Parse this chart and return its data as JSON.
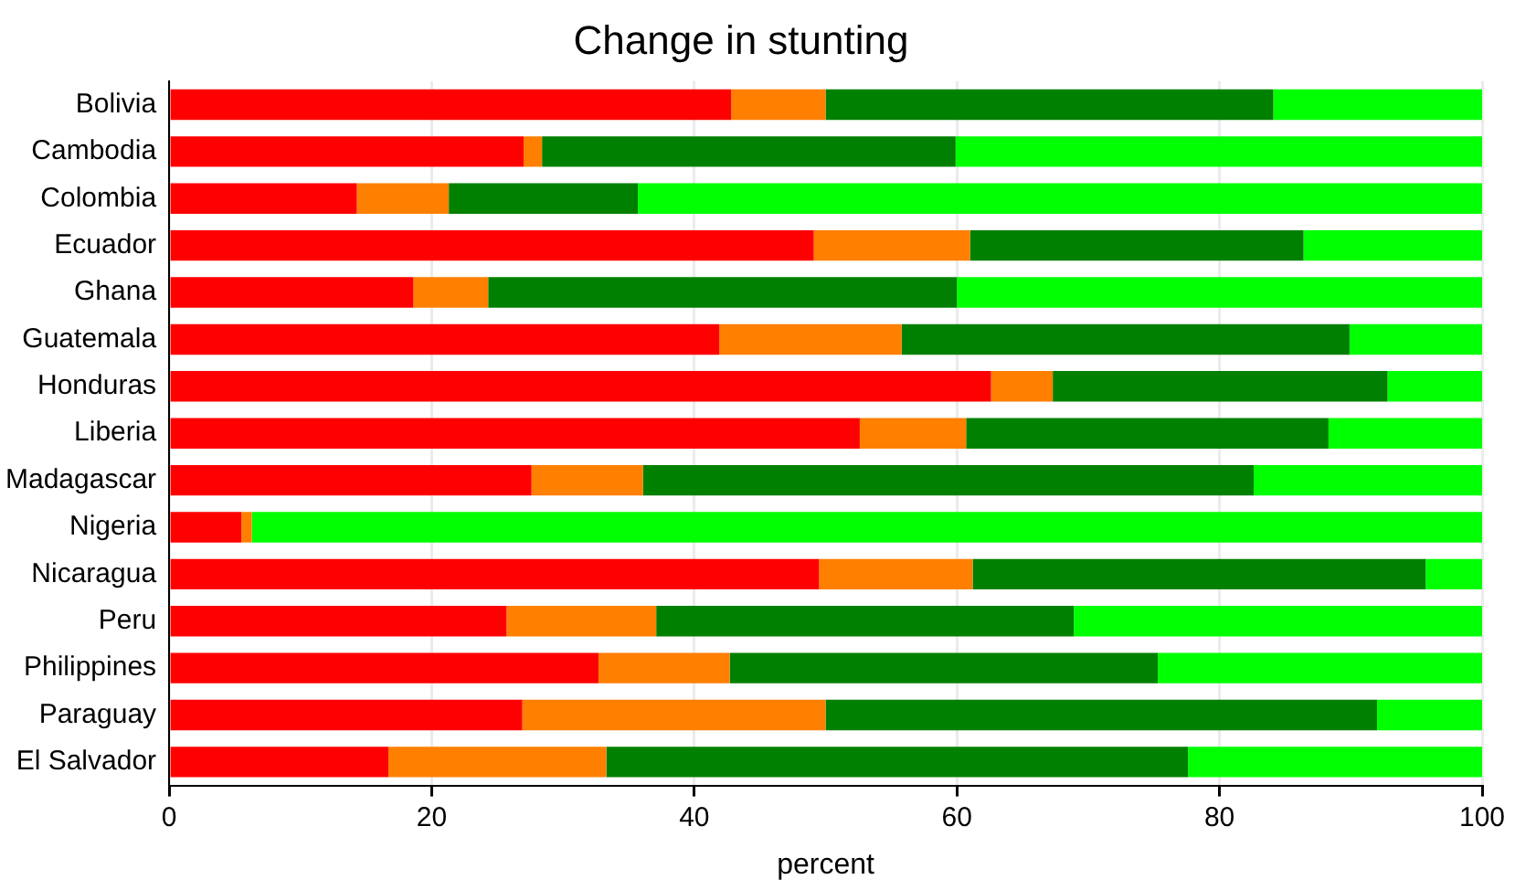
{
  "chart_data": {
    "type": "bar",
    "orientation": "horizontal",
    "stacked": true,
    "title": "Change in stunting",
    "xlabel": "percent",
    "categories": [
      "Bolivia",
      "Cambodia",
      "Colombia",
      "Ecuador",
      "Ghana",
      "Guatemala",
      "Honduras",
      "Liberia",
      "Madagascar",
      "Nigeria",
      "Nicaragua",
      "Peru",
      "Philippines",
      "Paraguay",
      "El Salvador"
    ],
    "series": [
      {
        "color": "#ff0000",
        "values": [
          42.8,
          27.0,
          14.3,
          49.1,
          18.6,
          41.9,
          62.6,
          52.6,
          27.6,
          5.5,
          49.5,
          25.7,
          32.7,
          26.9,
          16.7
        ]
      },
      {
        "color": "#ff7f00",
        "values": [
          7.2,
          1.4,
          7.0,
          11.9,
          5.7,
          13.9,
          4.7,
          8.1,
          8.5,
          0.8,
          11.7,
          11.4,
          10.0,
          23.1,
          16.6
        ]
      },
      {
        "color": "#008000",
        "values": [
          34.1,
          31.5,
          14.4,
          25.4,
          35.7,
          34.1,
          25.5,
          27.6,
          46.5,
          0,
          34.5,
          31.8,
          32.6,
          42.0,
          44.3
        ]
      },
      {
        "color": "#00ff00",
        "values": [
          15.9,
          40.1,
          64.3,
          13.6,
          40.0,
          10.1,
          7.2,
          11.7,
          17.4,
          93.7,
          4.3,
          31.1,
          24.7,
          8.0,
          22.4
        ]
      }
    ],
    "xlim": [
      0,
      100
    ],
    "xticks": [
      0,
      20,
      40,
      60,
      80,
      100
    ],
    "grid": "x",
    "legend": false
  }
}
